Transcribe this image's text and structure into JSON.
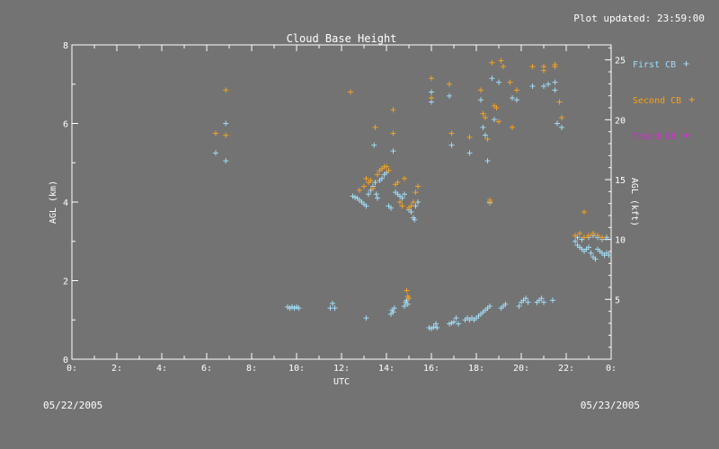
{
  "header": {
    "updated_text": "Plot updated: 23:59:00",
    "start_date": "05/22/2005",
    "end_date": "05/23/2005"
  },
  "chart_data": {
    "type": "scatter",
    "title": "Cloud Base Height",
    "xlabel": "UTC",
    "ylabel": "AGL (km)",
    "ylabel_right": "AGL (kft)",
    "xlim": [
      0,
      24
    ],
    "ylim": [
      0,
      8
    ],
    "ylim_right": [
      0,
      26.25
    ],
    "x_ticks": [
      "0:",
      "2:",
      "4:",
      "6:",
      "8:",
      "10:",
      "12:",
      "14:",
      "16:",
      "18:",
      "20:",
      "22:",
      "0:"
    ],
    "y_ticks": [
      "0",
      "2",
      "4",
      "6",
      "8"
    ],
    "y_ticks_right": [
      "5",
      "10",
      "15",
      "20",
      "25"
    ],
    "grid": false,
    "legend_position": "right",
    "colors": {
      "background": "#737373",
      "axis": "#ffffff"
    },
    "series": [
      {
        "name": "First CB",
        "color": "#9fdcf6",
        "points": [
          [
            6.4,
            5.25
          ],
          [
            6.85,
            6.0
          ],
          [
            6.85,
            5.05
          ],
          [
            9.6,
            1.33
          ],
          [
            9.7,
            1.3
          ],
          [
            9.8,
            1.33
          ],
          [
            9.9,
            1.3
          ],
          [
            10.0,
            1.33
          ],
          [
            10.1,
            1.3
          ],
          [
            11.5,
            1.3
          ],
          [
            11.6,
            1.42
          ],
          [
            11.7,
            1.3
          ],
          [
            13.1,
            1.05
          ],
          [
            12.5,
            4.15
          ],
          [
            12.6,
            4.12
          ],
          [
            12.7,
            4.1
          ],
          [
            12.8,
            4.05
          ],
          [
            12.9,
            4.0
          ],
          [
            13.0,
            3.95
          ],
          [
            13.1,
            3.9
          ],
          [
            13.2,
            4.2
          ],
          [
            13.3,
            4.3
          ],
          [
            13.4,
            4.4
          ],
          [
            13.5,
            4.5
          ],
          [
            13.55,
            4.2
          ],
          [
            13.6,
            4.1
          ],
          [
            13.45,
            5.45
          ],
          [
            13.7,
            4.55
          ],
          [
            13.8,
            4.6
          ],
          [
            13.9,
            4.7
          ],
          [
            14.0,
            4.75
          ],
          [
            14.1,
            3.9
          ],
          [
            14.2,
            3.85
          ],
          [
            14.3,
            5.3
          ],
          [
            14.4,
            4.25
          ],
          [
            14.5,
            4.2
          ],
          [
            14.6,
            4.15
          ],
          [
            14.7,
            4.1
          ],
          [
            14.8,
            4.2
          ],
          [
            14.2,
            1.15
          ],
          [
            14.25,
            1.25
          ],
          [
            14.3,
            1.2
          ],
          [
            14.35,
            1.3
          ],
          [
            14.8,
            1.35
          ],
          [
            14.85,
            1.45
          ],
          [
            14.9,
            1.5
          ],
          [
            14.95,
            1.4
          ],
          [
            15.0,
            3.8
          ],
          [
            15.1,
            3.75
          ],
          [
            15.2,
            3.6
          ],
          [
            15.25,
            3.55
          ],
          [
            15.3,
            3.9
          ],
          [
            15.4,
            4.0
          ],
          [
            15.9,
            0.8
          ],
          [
            16.0,
            0.78
          ],
          [
            16.1,
            0.82
          ],
          [
            16.2,
            0.9
          ],
          [
            16.25,
            0.8
          ],
          [
            16.0,
            6.55
          ],
          [
            16.0,
            6.8
          ],
          [
            16.8,
            6.7
          ],
          [
            16.9,
            5.45
          ],
          [
            17.7,
            5.25
          ],
          [
            16.8,
            0.9
          ],
          [
            16.9,
            0.92
          ],
          [
            17.0,
            0.95
          ],
          [
            17.1,
            1.05
          ],
          [
            17.2,
            0.9
          ],
          [
            17.5,
            1.0
          ],
          [
            17.6,
            1.05
          ],
          [
            17.7,
            1.0
          ],
          [
            17.8,
            1.05
          ],
          [
            17.9,
            1.0
          ],
          [
            18.0,
            1.05
          ],
          [
            18.1,
            1.1
          ],
          [
            18.2,
            1.15
          ],
          [
            18.3,
            1.2
          ],
          [
            18.4,
            1.25
          ],
          [
            18.5,
            1.3
          ],
          [
            18.6,
            1.35
          ],
          [
            18.2,
            6.6
          ],
          [
            18.3,
            5.9
          ],
          [
            18.4,
            5.7
          ],
          [
            18.5,
            5.05
          ],
          [
            18.6,
            3.98
          ],
          [
            18.7,
            7.15
          ],
          [
            18.8,
            6.1
          ],
          [
            19.0,
            7.05
          ],
          [
            19.1,
            1.3
          ],
          [
            19.2,
            1.35
          ],
          [
            19.3,
            1.4
          ],
          [
            19.6,
            6.65
          ],
          [
            19.8,
            6.6
          ],
          [
            19.9,
            1.35
          ],
          [
            20.0,
            1.45
          ],
          [
            20.1,
            1.5
          ],
          [
            20.2,
            1.55
          ],
          [
            20.3,
            1.45
          ],
          [
            20.7,
            1.45
          ],
          [
            20.8,
            1.5
          ],
          [
            20.9,
            1.55
          ],
          [
            21.0,
            1.45
          ],
          [
            21.2,
            7.0
          ],
          [
            21.4,
            1.5
          ],
          [
            20.5,
            6.95
          ],
          [
            21.0,
            6.95
          ],
          [
            21.5,
            6.85
          ],
          [
            21.5,
            7.05
          ],
          [
            21.8,
            5.9
          ],
          [
            21.6,
            6.0
          ],
          [
            22.4,
            3.0
          ],
          [
            22.5,
            2.9
          ],
          [
            22.6,
            2.85
          ],
          [
            22.7,
            2.8
          ],
          [
            22.8,
            2.75
          ],
          [
            22.9,
            2.8
          ],
          [
            23.0,
            2.85
          ],
          [
            23.1,
            2.7
          ],
          [
            23.2,
            2.6
          ],
          [
            23.3,
            2.55
          ],
          [
            23.4,
            2.8
          ],
          [
            23.5,
            2.75
          ],
          [
            23.6,
            2.7
          ],
          [
            23.7,
            2.65
          ],
          [
            23.8,
            2.7
          ],
          [
            23.9,
            2.65
          ],
          [
            22.5,
            3.1
          ],
          [
            22.7,
            3.05
          ],
          [
            23.0,
            3.1
          ],
          [
            23.2,
            3.15
          ],
          [
            23.4,
            3.1
          ],
          [
            23.6,
            3.05
          ],
          [
            23.8,
            3.1
          ]
        ]
      },
      {
        "name": "Second CB",
        "color": "#f5a21a",
        "points": [
          [
            6.4,
            5.75
          ],
          [
            6.85,
            6.85
          ],
          [
            6.85,
            5.7
          ],
          [
            12.4,
            6.8
          ],
          [
            12.8,
            4.3
          ],
          [
            13.0,
            4.4
          ],
          [
            13.1,
            4.6
          ],
          [
            13.2,
            4.5
          ],
          [
            13.3,
            4.55
          ],
          [
            13.4,
            4.35
          ],
          [
            13.5,
            5.9
          ],
          [
            13.6,
            4.7
          ],
          [
            13.7,
            4.8
          ],
          [
            13.8,
            4.85
          ],
          [
            13.9,
            4.9
          ],
          [
            14.0,
            4.9
          ],
          [
            14.1,
            4.8
          ],
          [
            14.3,
            6.35
          ],
          [
            14.3,
            5.75
          ],
          [
            14.4,
            4.45
          ],
          [
            14.5,
            4.5
          ],
          [
            14.6,
            4.0
          ],
          [
            14.7,
            3.9
          ],
          [
            14.8,
            4.6
          ],
          [
            15.0,
            3.85
          ],
          [
            15.1,
            3.9
          ],
          [
            15.2,
            4.0
          ],
          [
            15.3,
            4.25
          ],
          [
            15.4,
            4.4
          ],
          [
            14.9,
            1.75
          ],
          [
            14.95,
            1.6
          ],
          [
            15.0,
            1.55
          ],
          [
            16.0,
            7.15
          ],
          [
            16.0,
            6.65
          ],
          [
            16.8,
            7.0
          ],
          [
            16.9,
            5.75
          ],
          [
            17.7,
            5.65
          ],
          [
            18.2,
            6.85
          ],
          [
            18.3,
            6.25
          ],
          [
            18.4,
            6.15
          ],
          [
            18.5,
            5.6
          ],
          [
            18.6,
            4.05
          ],
          [
            18.6,
            4.0
          ],
          [
            18.7,
            7.55
          ],
          [
            18.8,
            6.45
          ],
          [
            18.9,
            6.4
          ],
          [
            19.0,
            6.05
          ],
          [
            19.1,
            7.6
          ],
          [
            19.2,
            7.45
          ],
          [
            19.5,
            7.05
          ],
          [
            19.8,
            6.85
          ],
          [
            19.6,
            5.9
          ],
          [
            20.5,
            7.45
          ],
          [
            21.0,
            7.45
          ],
          [
            21.0,
            7.35
          ],
          [
            21.5,
            7.5
          ],
          [
            21.5,
            7.45
          ],
          [
            21.7,
            6.55
          ],
          [
            21.8,
            6.15
          ],
          [
            22.8,
            3.75
          ],
          [
            22.4,
            3.15
          ],
          [
            22.6,
            3.2
          ],
          [
            22.8,
            3.1
          ],
          [
            23.0,
            3.15
          ],
          [
            23.2,
            3.2
          ],
          [
            23.4,
            3.15
          ],
          [
            23.6,
            3.1
          ]
        ]
      },
      {
        "name": "Third CB",
        "color": "#e020e0",
        "points": []
      }
    ]
  }
}
